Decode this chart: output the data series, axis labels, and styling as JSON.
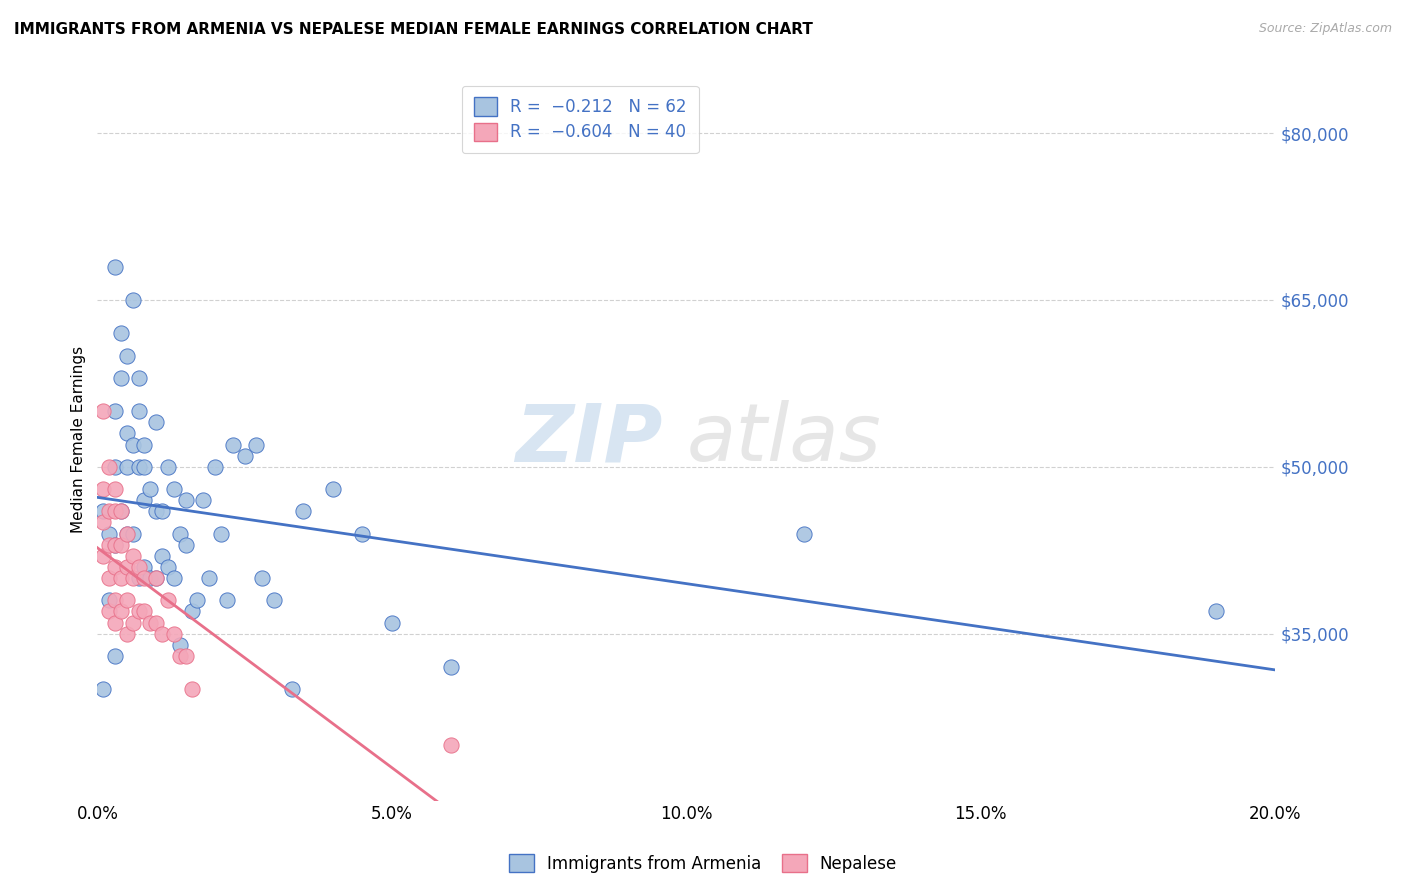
{
  "title": "IMMIGRANTS FROM ARMENIA VS NEPALESE MEDIAN FEMALE EARNINGS CORRELATION CHART",
  "source": "Source: ZipAtlas.com",
  "ylabel": "Median Female Earnings",
  "xlim": [
    0,
    0.2
  ],
  "ylim": [
    20000,
    85000
  ],
  "xtick_labels": [
    "0.0%",
    "",
    "5.0%",
    "",
    "10.0%",
    "",
    "15.0%",
    "",
    "20.0%"
  ],
  "xtick_values": [
    0.0,
    0.025,
    0.05,
    0.075,
    0.1,
    0.125,
    0.15,
    0.175,
    0.2
  ],
  "ytick_labels": [
    "$35,000",
    "$50,000",
    "$65,000",
    "$80,000"
  ],
  "ytick_values": [
    35000,
    50000,
    65000,
    80000
  ],
  "watermark_zip": "ZIP",
  "watermark_atlas": "atlas",
  "color_armenia": "#a8c4e0",
  "color_nepalese": "#f4a7b9",
  "trendline_armenia_color": "#4472c4",
  "trendline_nepalese_color": "#e8708a",
  "legend_label1": "Immigrants from Armenia",
  "legend_label2": "Nepalese",
  "armenia_x": [
    0.001,
    0.001,
    0.002,
    0.002,
    0.003,
    0.003,
    0.003,
    0.003,
    0.003,
    0.004,
    0.004,
    0.004,
    0.005,
    0.005,
    0.005,
    0.005,
    0.006,
    0.006,
    0.006,
    0.007,
    0.007,
    0.007,
    0.007,
    0.008,
    0.008,
    0.008,
    0.008,
    0.009,
    0.009,
    0.01,
    0.01,
    0.01,
    0.011,
    0.011,
    0.012,
    0.012,
    0.013,
    0.013,
    0.014,
    0.014,
    0.015,
    0.015,
    0.016,
    0.017,
    0.018,
    0.019,
    0.02,
    0.021,
    0.022,
    0.023,
    0.025,
    0.027,
    0.028,
    0.03,
    0.033,
    0.035,
    0.04,
    0.045,
    0.05,
    0.06,
    0.12,
    0.19
  ],
  "armenia_y": [
    46000,
    30000,
    44000,
    38000,
    68000,
    55000,
    50000,
    43000,
    33000,
    62000,
    58000,
    46000,
    60000,
    53000,
    50000,
    44000,
    65000,
    52000,
    44000,
    58000,
    55000,
    50000,
    40000,
    52000,
    50000,
    47000,
    41000,
    48000,
    40000,
    54000,
    46000,
    40000,
    46000,
    42000,
    50000,
    41000,
    48000,
    40000,
    44000,
    34000,
    47000,
    43000,
    37000,
    38000,
    47000,
    40000,
    50000,
    44000,
    38000,
    52000,
    51000,
    52000,
    40000,
    38000,
    30000,
    46000,
    48000,
    44000,
    36000,
    32000,
    44000,
    37000
  ],
  "nepalese_x": [
    0.001,
    0.001,
    0.001,
    0.001,
    0.002,
    0.002,
    0.002,
    0.002,
    0.002,
    0.003,
    0.003,
    0.003,
    0.003,
    0.003,
    0.003,
    0.004,
    0.004,
    0.004,
    0.004,
    0.005,
    0.005,
    0.005,
    0.005,
    0.006,
    0.006,
    0.006,
    0.007,
    0.007,
    0.008,
    0.008,
    0.009,
    0.01,
    0.01,
    0.011,
    0.012,
    0.013,
    0.014,
    0.015,
    0.016,
    0.06
  ],
  "nepalese_y": [
    55000,
    48000,
    45000,
    42000,
    50000,
    46000,
    43000,
    40000,
    37000,
    48000,
    46000,
    43000,
    41000,
    38000,
    36000,
    46000,
    43000,
    40000,
    37000,
    44000,
    41000,
    38000,
    35000,
    42000,
    40000,
    36000,
    41000,
    37000,
    40000,
    37000,
    36000,
    40000,
    36000,
    35000,
    38000,
    35000,
    33000,
    33000,
    30000,
    25000
  ]
}
